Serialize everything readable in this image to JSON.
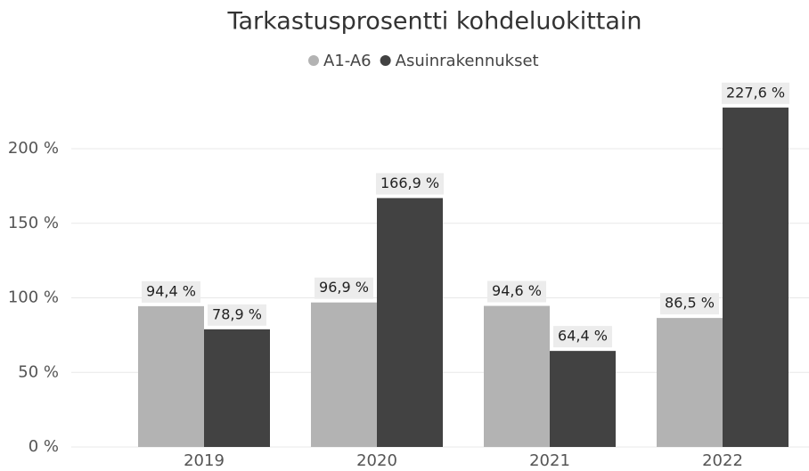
{
  "chart_data": {
    "type": "bar",
    "title": "Tarkastusprosentti kohdeluokittain",
    "categories": [
      "2019",
      "2020",
      "2021",
      "2022"
    ],
    "series": [
      {
        "name": "A1-A6",
        "color": "#b3b3b3",
        "values": [
          94.4,
          96.9,
          94.6,
          86.5
        ],
        "value_labels": [
          "94,4 %",
          "96,9 %",
          "94,6 %",
          "86,5 %"
        ]
      },
      {
        "name": "Asuinrakennukset",
        "color": "#424242",
        "values": [
          78.9,
          166.9,
          64.4,
          227.6
        ],
        "value_labels": [
          "78,9 %",
          "166,9 %",
          "64,4 %",
          "227,6 %"
        ]
      }
    ],
    "ylim": [
      0,
      240
    ],
    "yticks": [
      {
        "value": 0,
        "label": "0 %"
      },
      {
        "value": 50,
        "label": "50 %"
      },
      {
        "value": 100,
        "label": "100 %"
      },
      {
        "value": 150,
        "label": "150 %"
      },
      {
        "value": 200,
        "label": "200 %"
      }
    ],
    "grid": true,
    "legend": "top"
  }
}
